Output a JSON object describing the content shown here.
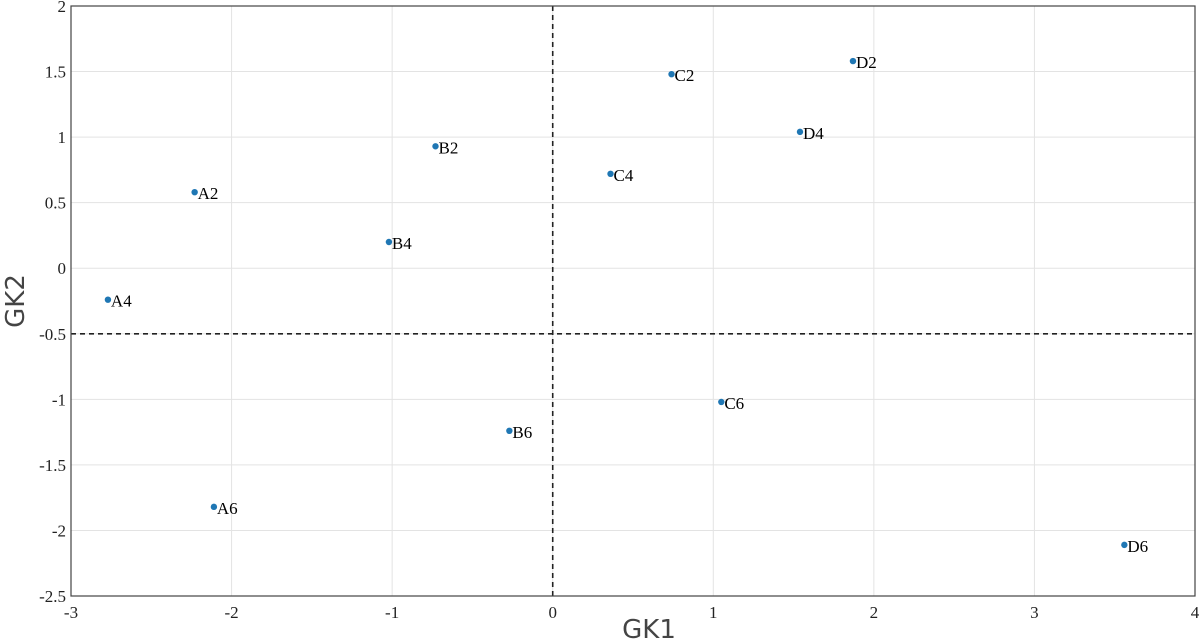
{
  "chart_data": {
    "type": "scatter",
    "title": "",
    "xlabel": "GK1",
    "ylabel": "GK2",
    "xlim": [
      -3,
      4
    ],
    "ylim": [
      -2.5,
      2
    ],
    "xticks": [
      -3,
      -2,
      -1,
      0,
      1,
      2,
      3,
      4
    ],
    "yticks": [
      -2.5,
      -2,
      -1.5,
      -1,
      -0.5,
      0,
      0.5,
      1,
      1.5,
      2
    ],
    "xtick_labels": [
      "-3",
      "-2",
      "-1",
      "0",
      "1",
      "2",
      "3",
      "4"
    ],
    "ytick_labels": [
      "-2.5",
      "-2",
      "-1.5",
      "-1",
      "-0.5",
      "0",
      "0.5",
      "1",
      "1.5",
      "2"
    ],
    "grid": true,
    "reference_lines": {
      "x": 0,
      "y": -0.5
    },
    "point_color": "#1f77b4",
    "points": [
      {
        "label": "A2",
        "x": -2.23,
        "y": 0.58
      },
      {
        "label": "A4",
        "x": -2.77,
        "y": -0.24
      },
      {
        "label": "A6",
        "x": -2.11,
        "y": -1.82
      },
      {
        "label": "B2",
        "x": -0.73,
        "y": 0.93
      },
      {
        "label": "B4",
        "x": -1.02,
        "y": 0.2
      },
      {
        "label": "B6",
        "x": -0.27,
        "y": -1.24
      },
      {
        "label": "C2",
        "x": 0.74,
        "y": 1.48
      },
      {
        "label": "C4",
        "x": 0.36,
        "y": 0.72
      },
      {
        "label": "C6",
        "x": 1.05,
        "y": -1.02
      },
      {
        "label": "D2",
        "x": 1.87,
        "y": 1.58
      },
      {
        "label": "D4",
        "x": 1.54,
        "y": 1.04
      },
      {
        "label": "D6",
        "x": 3.56,
        "y": -2.11
      }
    ]
  }
}
